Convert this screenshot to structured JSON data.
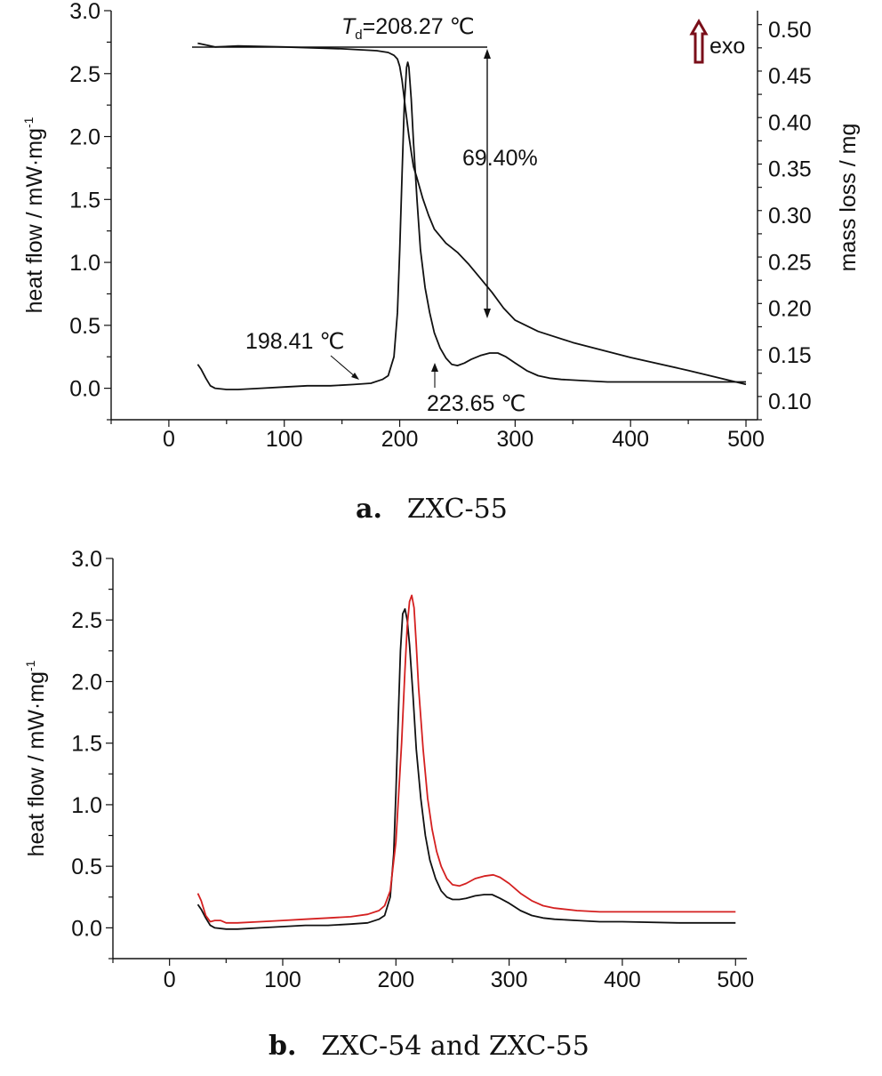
{
  "chart_data": [
    {
      "type": "line",
      "panel_label": "a.",
      "caption": "ZXC-55",
      "xlabel": "",
      "ylabel_left": "heat flow / mW·mg",
      "ylabel_left_sup": "-1",
      "ylabel_right": "mass loss / mg",
      "xlim": [
        -50,
        510
      ],
      "ylim_left": [
        -0.25,
        3.0
      ],
      "ylim_right": [
        0.08,
        0.52
      ],
      "x_ticks": [
        0,
        100,
        200,
        300,
        400,
        500
      ],
      "y_ticks_left": [
        "0.0",
        "0.5",
        "1.0",
        "1.5",
        "2.0",
        "2.5",
        "3.0"
      ],
      "y_ticks_right": [
        "0.10",
        "0.15",
        "0.20",
        "0.25",
        "0.30",
        "0.35",
        "0.40",
        "0.45",
        "0.50"
      ],
      "annotations": {
        "td_symbol": "T",
        "td_subscript": "d",
        "td_value": "=208.27 ℃",
        "mass_loss": "69.40%",
        "onset": "198.41 ℃",
        "second_peak": "223.65 ℃",
        "exo": "exo"
      },
      "series": [
        {
          "kind": "heat_flow",
          "axis": "left",
          "color": "#111111",
          "x": [
            25,
            28,
            32,
            36,
            40,
            50,
            60,
            80,
            100,
            120,
            140,
            160,
            175,
            185,
            190,
            195,
            198,
            200,
            202,
            204,
            206,
            207,
            208,
            210,
            212,
            215,
            218,
            222,
            226,
            230,
            235,
            240,
            245,
            250,
            256,
            262,
            270,
            278,
            285,
            292,
            300,
            310,
            320,
            330,
            340,
            360,
            380,
            400,
            450,
            500
          ],
          "values": [
            0.19,
            0.15,
            0.08,
            0.02,
            0.0,
            -0.01,
            -0.01,
            0.0,
            0.01,
            0.02,
            0.02,
            0.03,
            0.04,
            0.07,
            0.1,
            0.25,
            0.6,
            1.1,
            1.7,
            2.25,
            2.55,
            2.59,
            2.55,
            2.3,
            1.95,
            1.5,
            1.1,
            0.8,
            0.6,
            0.44,
            0.32,
            0.24,
            0.19,
            0.18,
            0.2,
            0.23,
            0.26,
            0.28,
            0.28,
            0.25,
            0.2,
            0.14,
            0.1,
            0.08,
            0.07,
            0.06,
            0.05,
            0.05,
            0.05,
            0.05
          ]
        },
        {
          "kind": "mass",
          "axis": "right",
          "color": "#111111",
          "x": [
            25,
            40,
            60,
            100,
            150,
            180,
            190,
            195,
            198,
            200,
            202,
            204,
            206,
            208,
            210,
            212,
            215,
            220,
            225,
            230,
            240,
            250,
            260,
            270,
            280,
            290,
            300,
            320,
            350,
            400,
            450,
            500
          ],
          "values": [
            0.485,
            0.481,
            0.482,
            0.481,
            0.479,
            0.477,
            0.475,
            0.472,
            0.468,
            0.46,
            0.445,
            0.425,
            0.405,
            0.385,
            0.368,
            0.352,
            0.34,
            0.318,
            0.3,
            0.285,
            0.27,
            0.26,
            0.247,
            0.232,
            0.217,
            0.2,
            0.187,
            0.175,
            0.163,
            0.147,
            0.133,
            0.118
          ]
        }
      ]
    },
    {
      "type": "line",
      "panel_label": "b.",
      "caption": "ZXC-54 and ZXC-55",
      "xlabel": "",
      "ylabel": "heat flow / mW·mg",
      "ylabel_sup": "-1",
      "xlim": [
        -50,
        510
      ],
      "ylim": [
        -0.25,
        3.0
      ],
      "x_ticks": [
        0,
        100,
        200,
        300,
        400,
        500
      ],
      "y_ticks": [
        "0.0",
        "0.5",
        "1.0",
        "1.5",
        "2.0",
        "2.5",
        "3.0"
      ],
      "series": [
        {
          "color": "#111111",
          "x": [
            25,
            28,
            32,
            36,
            40,
            50,
            60,
            80,
            100,
            120,
            140,
            160,
            175,
            185,
            190,
            195,
            198,
            200,
            202,
            204,
            206,
            208,
            210,
            212,
            215,
            218,
            222,
            226,
            230,
            235,
            240,
            245,
            250,
            256,
            262,
            270,
            278,
            285,
            292,
            300,
            310,
            320,
            330,
            340,
            360,
            380,
            400,
            450,
            500
          ],
          "values": [
            0.19,
            0.15,
            0.08,
            0.02,
            0.0,
            -0.01,
            -0.01,
            0.0,
            0.01,
            0.02,
            0.02,
            0.03,
            0.04,
            0.07,
            0.1,
            0.25,
            0.6,
            1.1,
            1.7,
            2.25,
            2.55,
            2.59,
            2.5,
            2.3,
            1.9,
            1.45,
            1.05,
            0.75,
            0.55,
            0.4,
            0.3,
            0.25,
            0.23,
            0.23,
            0.24,
            0.26,
            0.27,
            0.27,
            0.24,
            0.2,
            0.14,
            0.1,
            0.08,
            0.07,
            0.06,
            0.05,
            0.05,
            0.04,
            0.04
          ]
        },
        {
          "color": "#d42020",
          "x": [
            25,
            28,
            32,
            36,
            40,
            45,
            50,
            60,
            80,
            100,
            120,
            140,
            160,
            175,
            185,
            190,
            195,
            200,
            205,
            208,
            210,
            212,
            214,
            216,
            218,
            220,
            224,
            228,
            232,
            236,
            240,
            245,
            250,
            256,
            262,
            270,
            278,
            286,
            292,
            300,
            310,
            320,
            330,
            340,
            360,
            380,
            400,
            450,
            500
          ],
          "values": [
            0.28,
            0.22,
            0.1,
            0.05,
            0.06,
            0.06,
            0.04,
            0.04,
            0.05,
            0.06,
            0.07,
            0.08,
            0.09,
            0.11,
            0.14,
            0.18,
            0.3,
            0.7,
            1.5,
            2.1,
            2.45,
            2.65,
            2.7,
            2.6,
            2.3,
            1.95,
            1.45,
            1.05,
            0.8,
            0.62,
            0.5,
            0.4,
            0.35,
            0.34,
            0.36,
            0.4,
            0.42,
            0.43,
            0.41,
            0.36,
            0.28,
            0.22,
            0.18,
            0.16,
            0.14,
            0.13,
            0.13,
            0.13,
            0.13
          ]
        }
      ]
    }
  ]
}
